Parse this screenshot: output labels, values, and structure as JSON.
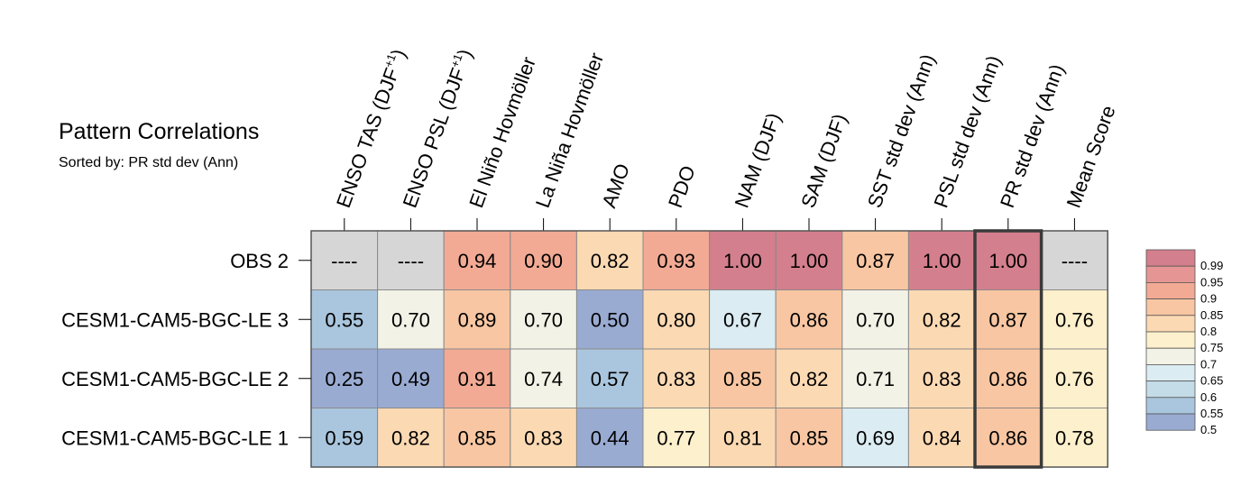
{
  "chart_data": {
    "type": "heatmap",
    "title": "Pattern Correlations",
    "subtitle": "Sorted by: PR std dev (Ann)",
    "columns": [
      {
        "main": "ENSO TAS (DJF",
        "sup": "+1",
        "tail": ")"
      },
      {
        "main": "ENSO PSL (DJF",
        "sup": "+1",
        "tail": ")"
      },
      {
        "main": "El Niño Hovmöller"
      },
      {
        "main": "La Niña Hovmöller"
      },
      {
        "main": "AMO"
      },
      {
        "main": "PDO"
      },
      {
        "main": "NAM (DJF)"
      },
      {
        "main": "SAM (DJF)"
      },
      {
        "main": "SST std dev (Ann)"
      },
      {
        "main": "PSL std dev (Ann)"
      },
      {
        "main": "PR std dev (Ann)"
      },
      {
        "main": "Mean Score"
      }
    ],
    "rows": [
      "OBS 2",
      "CESM1-CAM5-BGC-LE 3",
      "CESM1-CAM5-BGC-LE 2",
      "CESM1-CAM5-BGC-LE 1"
    ],
    "values": [
      [
        null,
        null,
        0.94,
        0.9,
        0.82,
        0.93,
        1.0,
        1.0,
        0.87,
        1.0,
        1.0,
        null
      ],
      [
        0.55,
        0.7,
        0.89,
        0.7,
        0.5,
        0.8,
        0.67,
        0.86,
        0.7,
        0.82,
        0.87,
        0.76
      ],
      [
        0.25,
        0.49,
        0.91,
        0.74,
        0.57,
        0.83,
        0.85,
        0.82,
        0.71,
        0.83,
        0.86,
        0.76
      ],
      [
        0.59,
        0.82,
        0.85,
        0.83,
        0.44,
        0.77,
        0.81,
        0.85,
        0.69,
        0.84,
        0.86,
        0.78
      ]
    ],
    "missing_label": "----",
    "highlight_column": "PR std dev (Ann)",
    "legend": {
      "levels": [
        "0.99",
        "0.95",
        "0.9",
        "0.85",
        "0.8",
        "0.75",
        "0.7",
        "0.65",
        "0.6",
        "0.55",
        "0.5"
      ],
      "colors": [
        "#d47f8d",
        "#e59694",
        "#f2aa94",
        "#f8c6a2",
        "#fbd9b3",
        "#fdf0cc",
        "#f2f2e6",
        "#dbecf2",
        "#c4dce8",
        "#aac6de",
        "#9aabd2"
      ],
      "placement": "right"
    },
    "missing_color": "#d6d6d6"
  }
}
